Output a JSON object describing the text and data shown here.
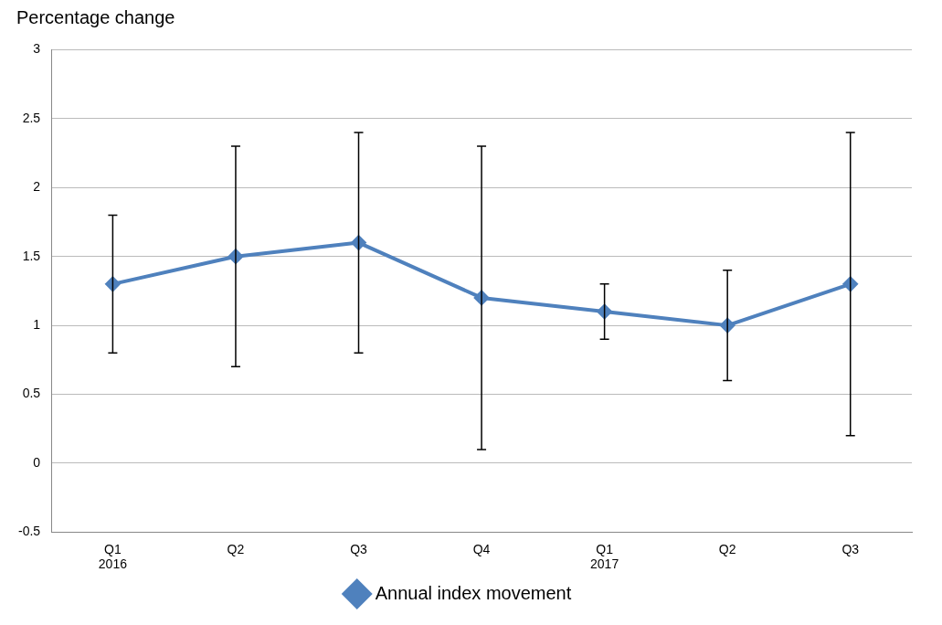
{
  "chart_data": {
    "type": "line",
    "ylabel": "Percentage change",
    "categories": [
      "Q1\n2016",
      "Q2",
      "Q3",
      "Q4",
      "Q1\n2017",
      "Q2",
      "Q3"
    ],
    "series": [
      {
        "name": "Annual index movement",
        "color": "#4f81bd",
        "values": [
          1.3,
          1.5,
          1.6,
          1.2,
          1.1,
          1.0,
          1.3
        ],
        "errors": [
          [
            0.8,
            1.8
          ],
          [
            0.7,
            2.3
          ],
          [
            0.8,
            2.4
          ],
          [
            0.1,
            2.3
          ],
          [
            0.9,
            1.3
          ],
          [
            0.6,
            1.4
          ],
          [
            0.2,
            2.4
          ]
        ]
      }
    ],
    "ylim": [
      -0.5,
      3
    ],
    "yticks": [
      -0.5,
      0,
      0.5,
      1,
      1.5,
      2,
      2.5,
      3
    ],
    "grid": "y",
    "legend": "bottom",
    "marker": "diamond",
    "line_style": "solid"
  }
}
